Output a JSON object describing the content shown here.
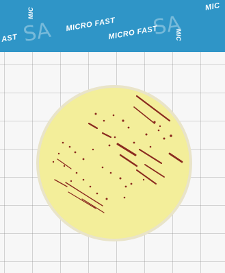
{
  "header": {
    "brand_name": "MICRO FAST",
    "brand_fragment_left": "AST",
    "brand_fragment_right": "MIC",
    "brand_vertical": "MIC",
    "brand_mark": "SA"
  },
  "colors": {
    "header_band": "#2f95c7",
    "plate_fill": "#f3ee9a",
    "plate_rim": "#e9e4c9",
    "colony": "#8a2a1f",
    "grid_background": "#f7f7f7"
  }
}
